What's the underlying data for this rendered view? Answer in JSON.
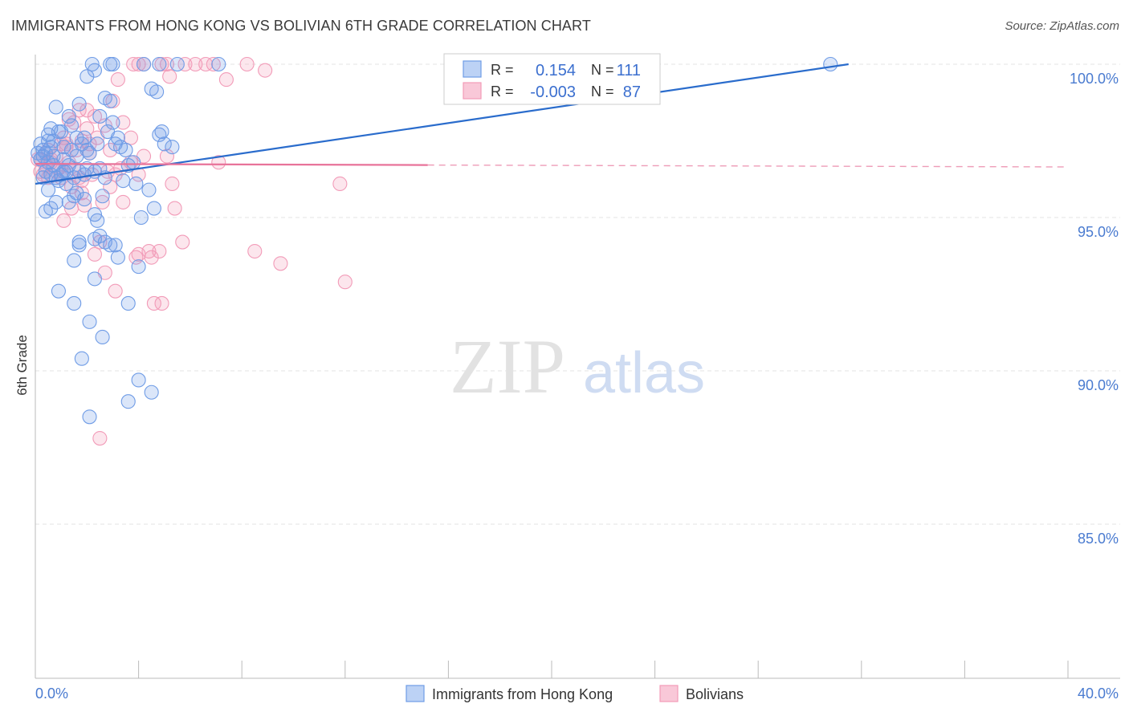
{
  "title": "IMMIGRANTS FROM HONG KONG VS BOLIVIAN 6TH GRADE CORRELATION CHART",
  "source": "Source: ZipAtlas.com",
  "watermark": {
    "zip": "ZIP",
    "atlas": "atlas"
  },
  "colors": {
    "blue": "#6f9ce6",
    "blue_line": "#2a6ccc",
    "pink": "#f29bb8",
    "pink_line": "#e8739a",
    "tick": "#4a7bd0",
    "grid": "#e3e3e3"
  },
  "legend_box": {
    "rows": [
      {
        "r_label": "R =",
        "r_value": "0.154",
        "n_label": "N =",
        "n_value": "111"
      },
      {
        "r_label": "R =",
        "r_value": "-0.003",
        "n_label": "N =",
        "n_value": "87"
      }
    ]
  },
  "chart_data": {
    "type": "scatter",
    "xlabel": "",
    "ylabel": "6th Grade",
    "xlim": [
      0,
      40
    ],
    "ylim": [
      80.5,
      100.4
    ],
    "x_tick_labels": [
      {
        "value": 0,
        "label": "0.0%"
      },
      {
        "value": 40,
        "label": "40.0%"
      }
    ],
    "y_tick_labels": [
      {
        "value": 100,
        "label": "100.0%"
      },
      {
        "value": 95,
        "label": "95.0%"
      },
      {
        "value": 90,
        "label": "90.0%"
      },
      {
        "value": 85,
        "label": "85.0%"
      }
    ],
    "legend": [
      {
        "name": "Immigrants from Hong Kong",
        "color": "blue"
      },
      {
        "name": "Bolivians",
        "color": "pink"
      }
    ],
    "series": [
      {
        "name": "Immigrants from Hong Kong",
        "color": "blue",
        "trend": {
          "x": [
            0,
            31.5
          ],
          "y": [
            96.1,
            100.0
          ],
          "solid_until": 31.5
        },
        "points": [
          [
            2.2,
            100
          ],
          [
            2.9,
            100
          ],
          [
            3,
            100
          ],
          [
            4.2,
            100
          ],
          [
            4.8,
            100
          ],
          [
            5.5,
            100
          ],
          [
            7.1,
            100
          ],
          [
            30.8,
            100
          ],
          [
            2,
            99.6
          ],
          [
            2.3,
            99.8
          ],
          [
            4.5,
            99.2
          ],
          [
            4.7,
            99.1
          ],
          [
            2.7,
            98.9
          ],
          [
            2.9,
            98.8
          ],
          [
            0.8,
            98.6
          ],
          [
            1.7,
            98.7
          ],
          [
            1.3,
            98.3
          ],
          [
            2.5,
            98.3
          ],
          [
            3,
            98.1
          ],
          [
            1.4,
            98
          ],
          [
            0.5,
            97.7
          ],
          [
            0.5,
            97.5
          ],
          [
            0.6,
            97.9
          ],
          [
            1,
            97.8
          ],
          [
            1.6,
            97.6
          ],
          [
            2.8,
            97.8
          ],
          [
            3.2,
            97.6
          ],
          [
            4.8,
            97.7
          ],
          [
            4.9,
            97.8
          ],
          [
            5,
            97.4
          ],
          [
            5.3,
            97.3
          ],
          [
            0.2,
            97.4
          ],
          [
            0.3,
            97.2
          ],
          [
            0.4,
            97.1
          ],
          [
            1.1,
            97.3
          ],
          [
            1.8,
            97.4
          ],
          [
            2,
            97.2
          ],
          [
            3.1,
            97.4
          ],
          [
            3.3,
            97.3
          ],
          [
            3.5,
            97.2
          ],
          [
            0.2,
            96.9
          ],
          [
            0.5,
            96.8
          ],
          [
            0.7,
            96.7
          ],
          [
            1.1,
            96.9
          ],
          [
            1.3,
            96.7
          ],
          [
            1.6,
            97
          ],
          [
            3.6,
            96.7
          ],
          [
            0.4,
            96.5
          ],
          [
            0.6,
            96.4
          ],
          [
            0.8,
            96.3
          ],
          [
            1.2,
            96.5
          ],
          [
            1.5,
            96.3
          ],
          [
            1.9,
            96.4
          ],
          [
            2,
            96.6
          ],
          [
            2.3,
            96.5
          ],
          [
            2.7,
            96.3
          ],
          [
            0.9,
            96.2
          ],
          [
            1.2,
            96.1
          ],
          [
            3.4,
            96.2
          ],
          [
            4.4,
            95.9
          ],
          [
            0.5,
            95.9
          ],
          [
            1.5,
            95.7
          ],
          [
            1.6,
            95.8
          ],
          [
            1.9,
            95.6
          ],
          [
            2.6,
            95.7
          ],
          [
            0.8,
            95.5
          ],
          [
            0.4,
            95.2
          ],
          [
            0.6,
            95.3
          ],
          [
            1.3,
            95.5
          ],
          [
            2.3,
            95.1
          ],
          [
            4.6,
            95.3
          ],
          [
            4.1,
            95
          ],
          [
            2.4,
            94.9
          ],
          [
            2.5,
            94.4
          ],
          [
            1.7,
            94.2
          ],
          [
            1.7,
            94.1
          ],
          [
            2.3,
            94.3
          ],
          [
            2.7,
            94.2
          ],
          [
            2.9,
            94.1
          ],
          [
            3.1,
            94.1
          ],
          [
            1.5,
            93.6
          ],
          [
            3.2,
            93.7
          ],
          [
            4,
            93.4
          ],
          [
            2.3,
            93
          ],
          [
            0.9,
            92.6
          ],
          [
            1.5,
            92.2
          ],
          [
            3.6,
            92.2
          ],
          [
            2.1,
            91.6
          ],
          [
            2.6,
            91.1
          ],
          [
            1.8,
            90.4
          ],
          [
            4,
            89.7
          ],
          [
            4.5,
            89.3
          ],
          [
            3.6,
            89
          ],
          [
            2.1,
            88.5
          ],
          [
            0.1,
            97.1
          ],
          [
            0.3,
            97
          ],
          [
            0.6,
            97.3
          ],
          [
            1.7,
            96.5
          ],
          [
            2.1,
            97.1
          ],
          [
            2.4,
            97.4
          ],
          [
            1,
            96.4
          ],
          [
            1.4,
            97.2
          ],
          [
            0.7,
            97.5
          ],
          [
            3.8,
            96.8
          ],
          [
            2.5,
            96.6
          ],
          [
            1.9,
            97.6
          ],
          [
            0.9,
            97.8
          ],
          [
            3.9,
            96.1
          ],
          [
            0.3,
            96.3
          ],
          [
            0.7,
            97
          ],
          [
            1.1,
            96.5
          ]
        ]
      },
      {
        "name": "Bolivians",
        "color": "pink",
        "trend": {
          "x": [
            0,
            40
          ],
          "y": [
            96.75,
            96.65
          ],
          "solid_until": 15.2
        },
        "points": [
          [
            3.8,
            100
          ],
          [
            4,
            100
          ],
          [
            4.2,
            100
          ],
          [
            4.9,
            100
          ],
          [
            5.1,
            100
          ],
          [
            5.8,
            100
          ],
          [
            6.2,
            100
          ],
          [
            6.6,
            100
          ],
          [
            6.9,
            100
          ],
          [
            8.2,
            100
          ],
          [
            8.9,
            99.8
          ],
          [
            5.2,
            99.6
          ],
          [
            3.2,
            99.5
          ],
          [
            7.4,
            99.5
          ],
          [
            3,
            98.8
          ],
          [
            1.7,
            98.5
          ],
          [
            2,
            98.5
          ],
          [
            1.3,
            98.2
          ],
          [
            1.5,
            98.1
          ],
          [
            2.3,
            98.3
          ],
          [
            3.4,
            98.1
          ],
          [
            2,
            97.9
          ],
          [
            2.7,
            98
          ],
          [
            1.1,
            97.6
          ],
          [
            1.8,
            97.5
          ],
          [
            2.4,
            97.6
          ],
          [
            3.7,
            97.6
          ],
          [
            1,
            97.4
          ],
          [
            1.6,
            97.2
          ],
          [
            2.1,
            97.4
          ],
          [
            2.9,
            97.2
          ],
          [
            0.5,
            97.2
          ],
          [
            0.8,
            97
          ],
          [
            1.2,
            97.3
          ],
          [
            4.2,
            97
          ],
          [
            5.1,
            97
          ],
          [
            0.2,
            96.9
          ],
          [
            0.4,
            96.7
          ],
          [
            0.6,
            96.8
          ],
          [
            0.8,
            96.5
          ],
          [
            1.3,
            96.8
          ],
          [
            3.7,
            96.8
          ],
          [
            7.1,
            96.8
          ],
          [
            0.3,
            96.4
          ],
          [
            0.5,
            96.3
          ],
          [
            1,
            96.3
          ],
          [
            1.7,
            96.3
          ],
          [
            2.2,
            96.4
          ],
          [
            0.9,
            96.6
          ],
          [
            2.8,
            96.5
          ],
          [
            3.1,
            96.4
          ],
          [
            4,
            96.4
          ],
          [
            5.3,
            96.1
          ],
          [
            11.8,
            96.1
          ],
          [
            1.4,
            96
          ],
          [
            1.8,
            96.2
          ],
          [
            2.9,
            96
          ],
          [
            1.8,
            95.8
          ],
          [
            2.6,
            95.5
          ],
          [
            3.4,
            95.5
          ],
          [
            1.4,
            95.3
          ],
          [
            1.9,
            95.4
          ],
          [
            5.4,
            95.3
          ],
          [
            1.1,
            94.9
          ],
          [
            2.5,
            94.2
          ],
          [
            5.7,
            94.2
          ],
          [
            2.3,
            93.8
          ],
          [
            4,
            93.8
          ],
          [
            4.4,
            93.9
          ],
          [
            4.5,
            93.7
          ],
          [
            4.8,
            93.9
          ],
          [
            8.5,
            93.9
          ],
          [
            9.5,
            93.5
          ],
          [
            3.9,
            93.7
          ],
          [
            2.7,
            93.2
          ],
          [
            3.1,
            92.6
          ],
          [
            12,
            92.9
          ],
          [
            4.6,
            92.2
          ],
          [
            4.9,
            92.2
          ],
          [
            2.5,
            87.8
          ],
          [
            0.1,
            96.9
          ],
          [
            0.6,
            96.9
          ],
          [
            2.1,
            97.1
          ],
          [
            1.2,
            97.4
          ],
          [
            3.3,
            96.6
          ],
          [
            1.5,
            96.6
          ],
          [
            0.2,
            96.5
          ]
        ]
      }
    ]
  }
}
